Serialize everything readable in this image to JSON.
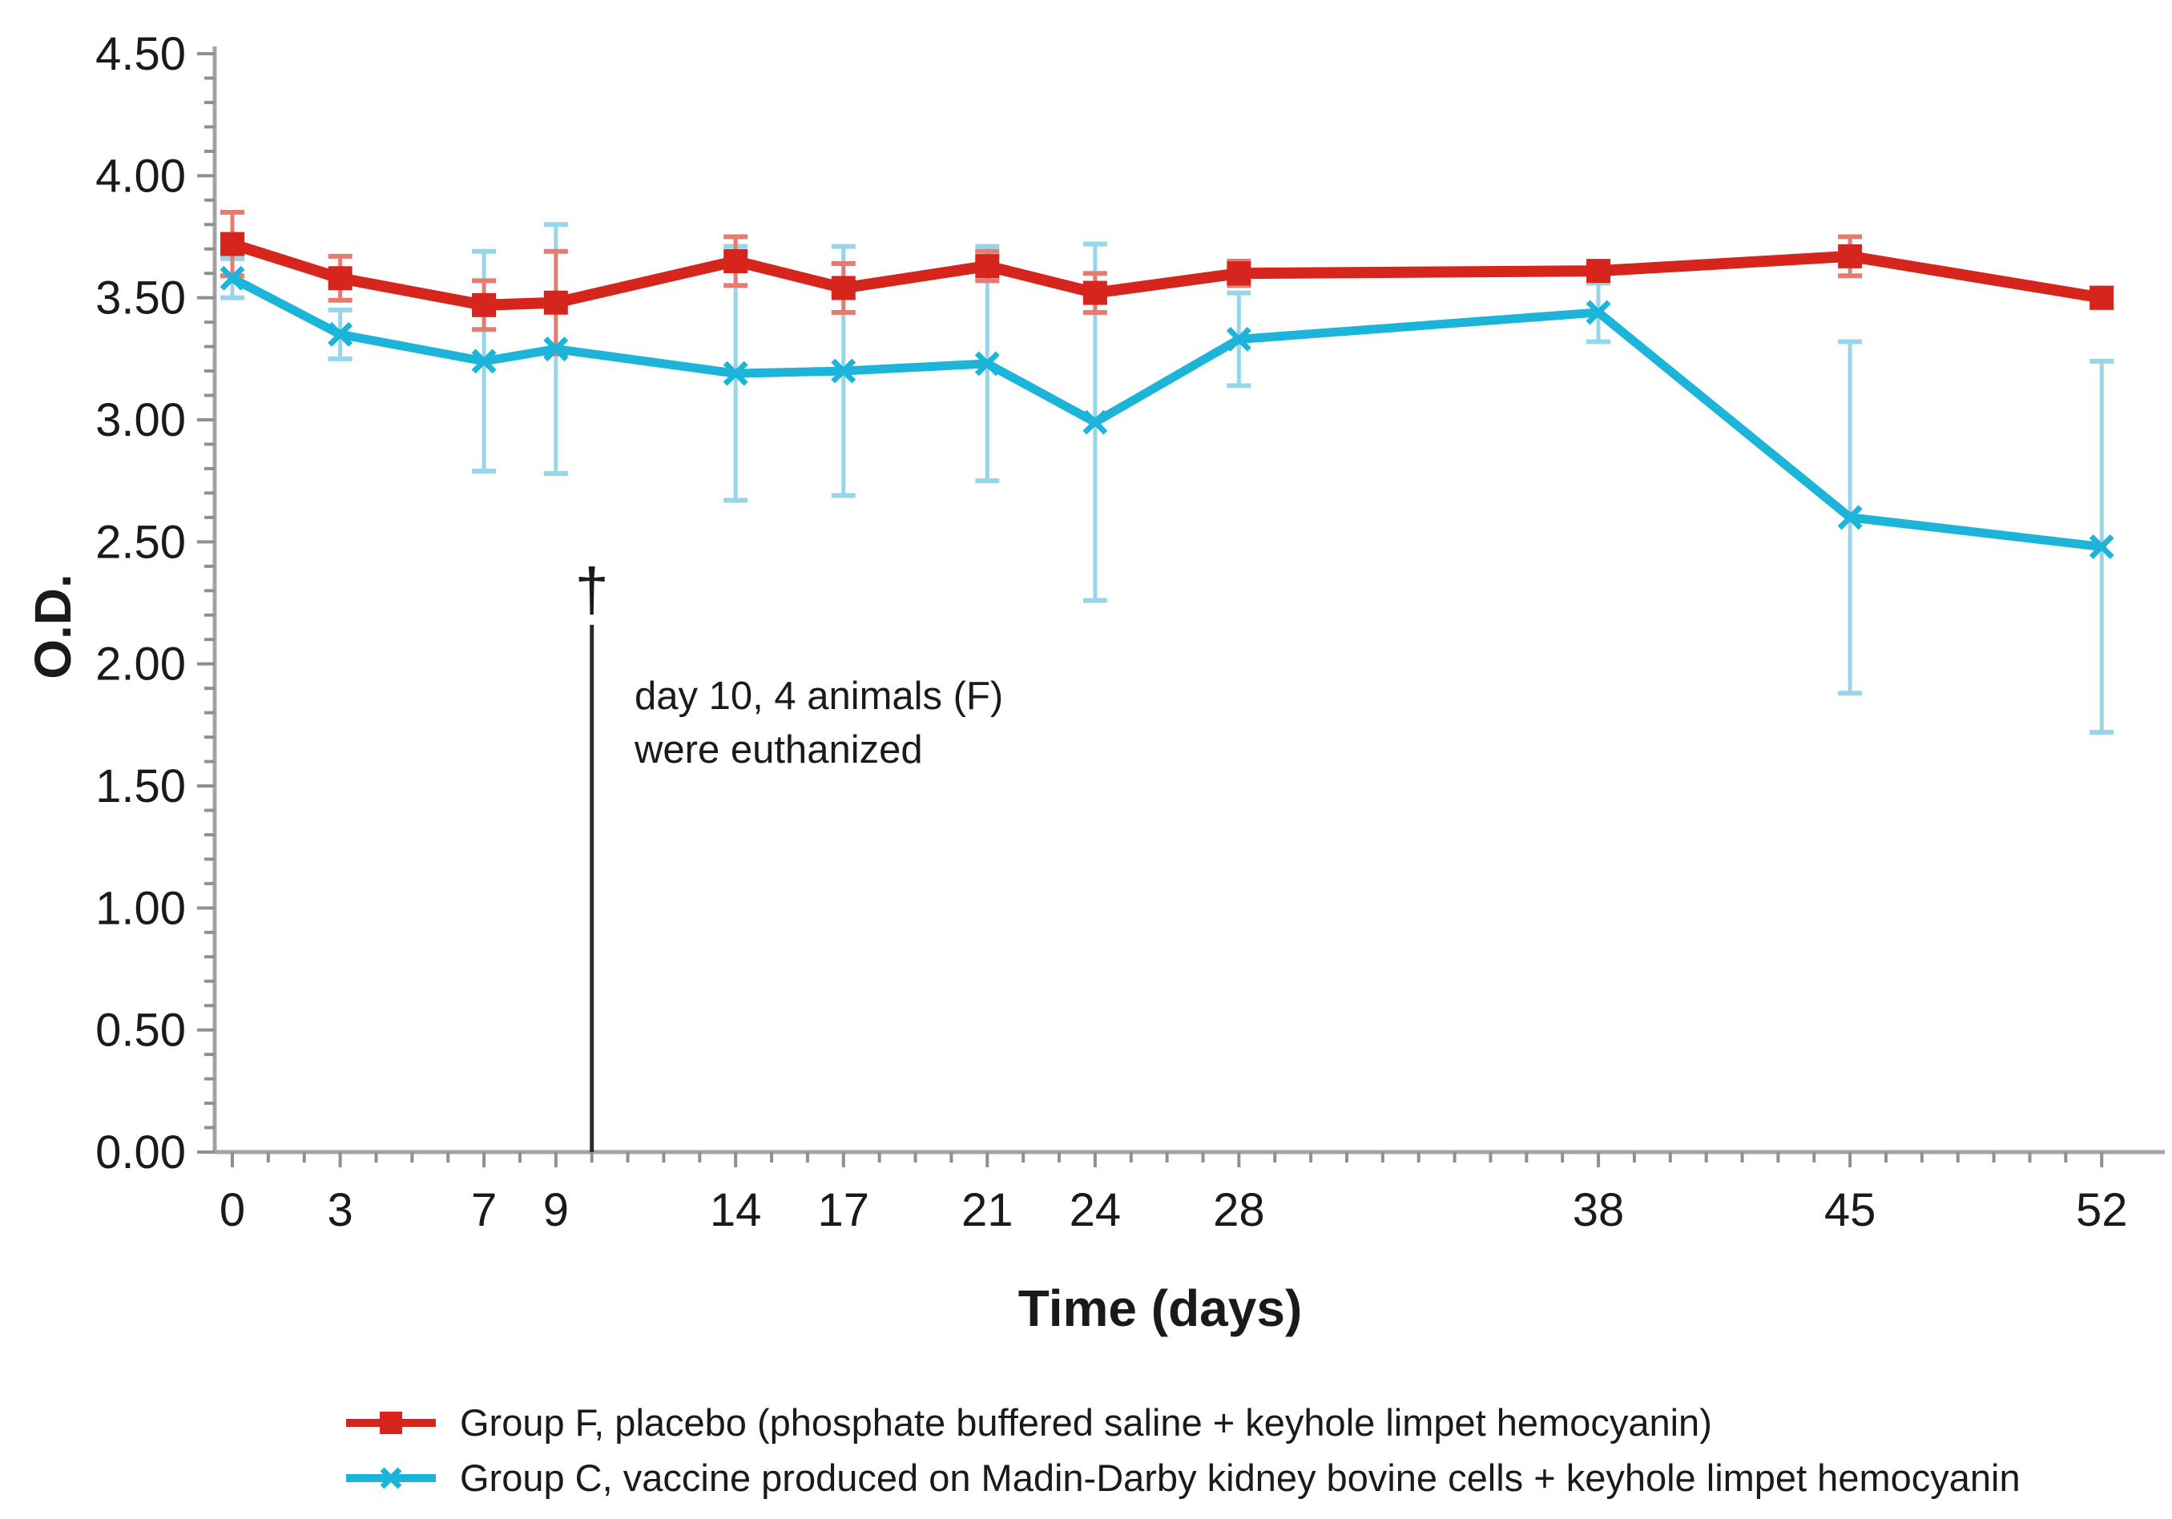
{
  "figure": {
    "background": "#ffffff"
  },
  "chart_data": {
    "type": "line",
    "title": "",
    "xlabel": "Time (days)",
    "ylabel": "O.D.",
    "xlim": [
      0,
      52
    ],
    "ylim": [
      0,
      4.5
    ],
    "x_ticks": [
      0,
      3,
      7,
      9,
      14,
      17,
      21,
      24,
      28,
      38,
      45,
      52
    ],
    "x_minor_tick_step": 1,
    "y_tick_step": 0.5,
    "y_minor_tick_step": 0.1,
    "y_tick_decimals": 2,
    "grid": false,
    "legend_position": "bottom",
    "axis_color": "#a3a3a3",
    "tick_color": "#8f8f8f",
    "text_color": "#1a1a1a",
    "x": [
      0,
      3,
      7,
      9,
      14,
      17,
      21,
      24,
      28,
      38,
      45,
      52
    ],
    "series": [
      {
        "name": "Group F, placebo (phosphate buffered saline + keyhole limpet hemocyanin)",
        "color": "#d6251d",
        "error_color": "#e57c72",
        "marker": "square",
        "values": [
          3.72,
          3.58,
          3.47,
          3.48,
          3.65,
          3.54,
          3.63,
          3.52,
          3.6,
          3.61,
          3.67,
          3.5
        ],
        "errors": [
          0.13,
          0.09,
          0.1,
          0.21,
          0.1,
          0.1,
          0.06,
          0.08,
          0.05,
          0.03,
          0.08,
          0.04
        ]
      },
      {
        "name": "Group C, vaccine produced on Madin-Darby kidney bovine cells + keyhole limpet hemocyanin",
        "color": "#1cb4d9",
        "error_color": "#97d6e8",
        "marker": "x",
        "values": [
          3.58,
          3.35,
          3.24,
          3.29,
          3.19,
          3.2,
          3.23,
          2.99,
          3.33,
          3.44,
          2.6,
          2.48
        ],
        "errors": [
          0.08,
          0.1,
          0.45,
          0.51,
          0.52,
          0.51,
          0.48,
          0.73,
          0.19,
          0.12,
          0.72,
          0.76
        ]
      }
    ],
    "annotation": {
      "symbol": "†",
      "line1": "day 10, 4 animals (F)",
      "line2": "were euthanized",
      "day": 10,
      "line_top_od": 2.16,
      "line_color": "#2b2b2b"
    }
  }
}
